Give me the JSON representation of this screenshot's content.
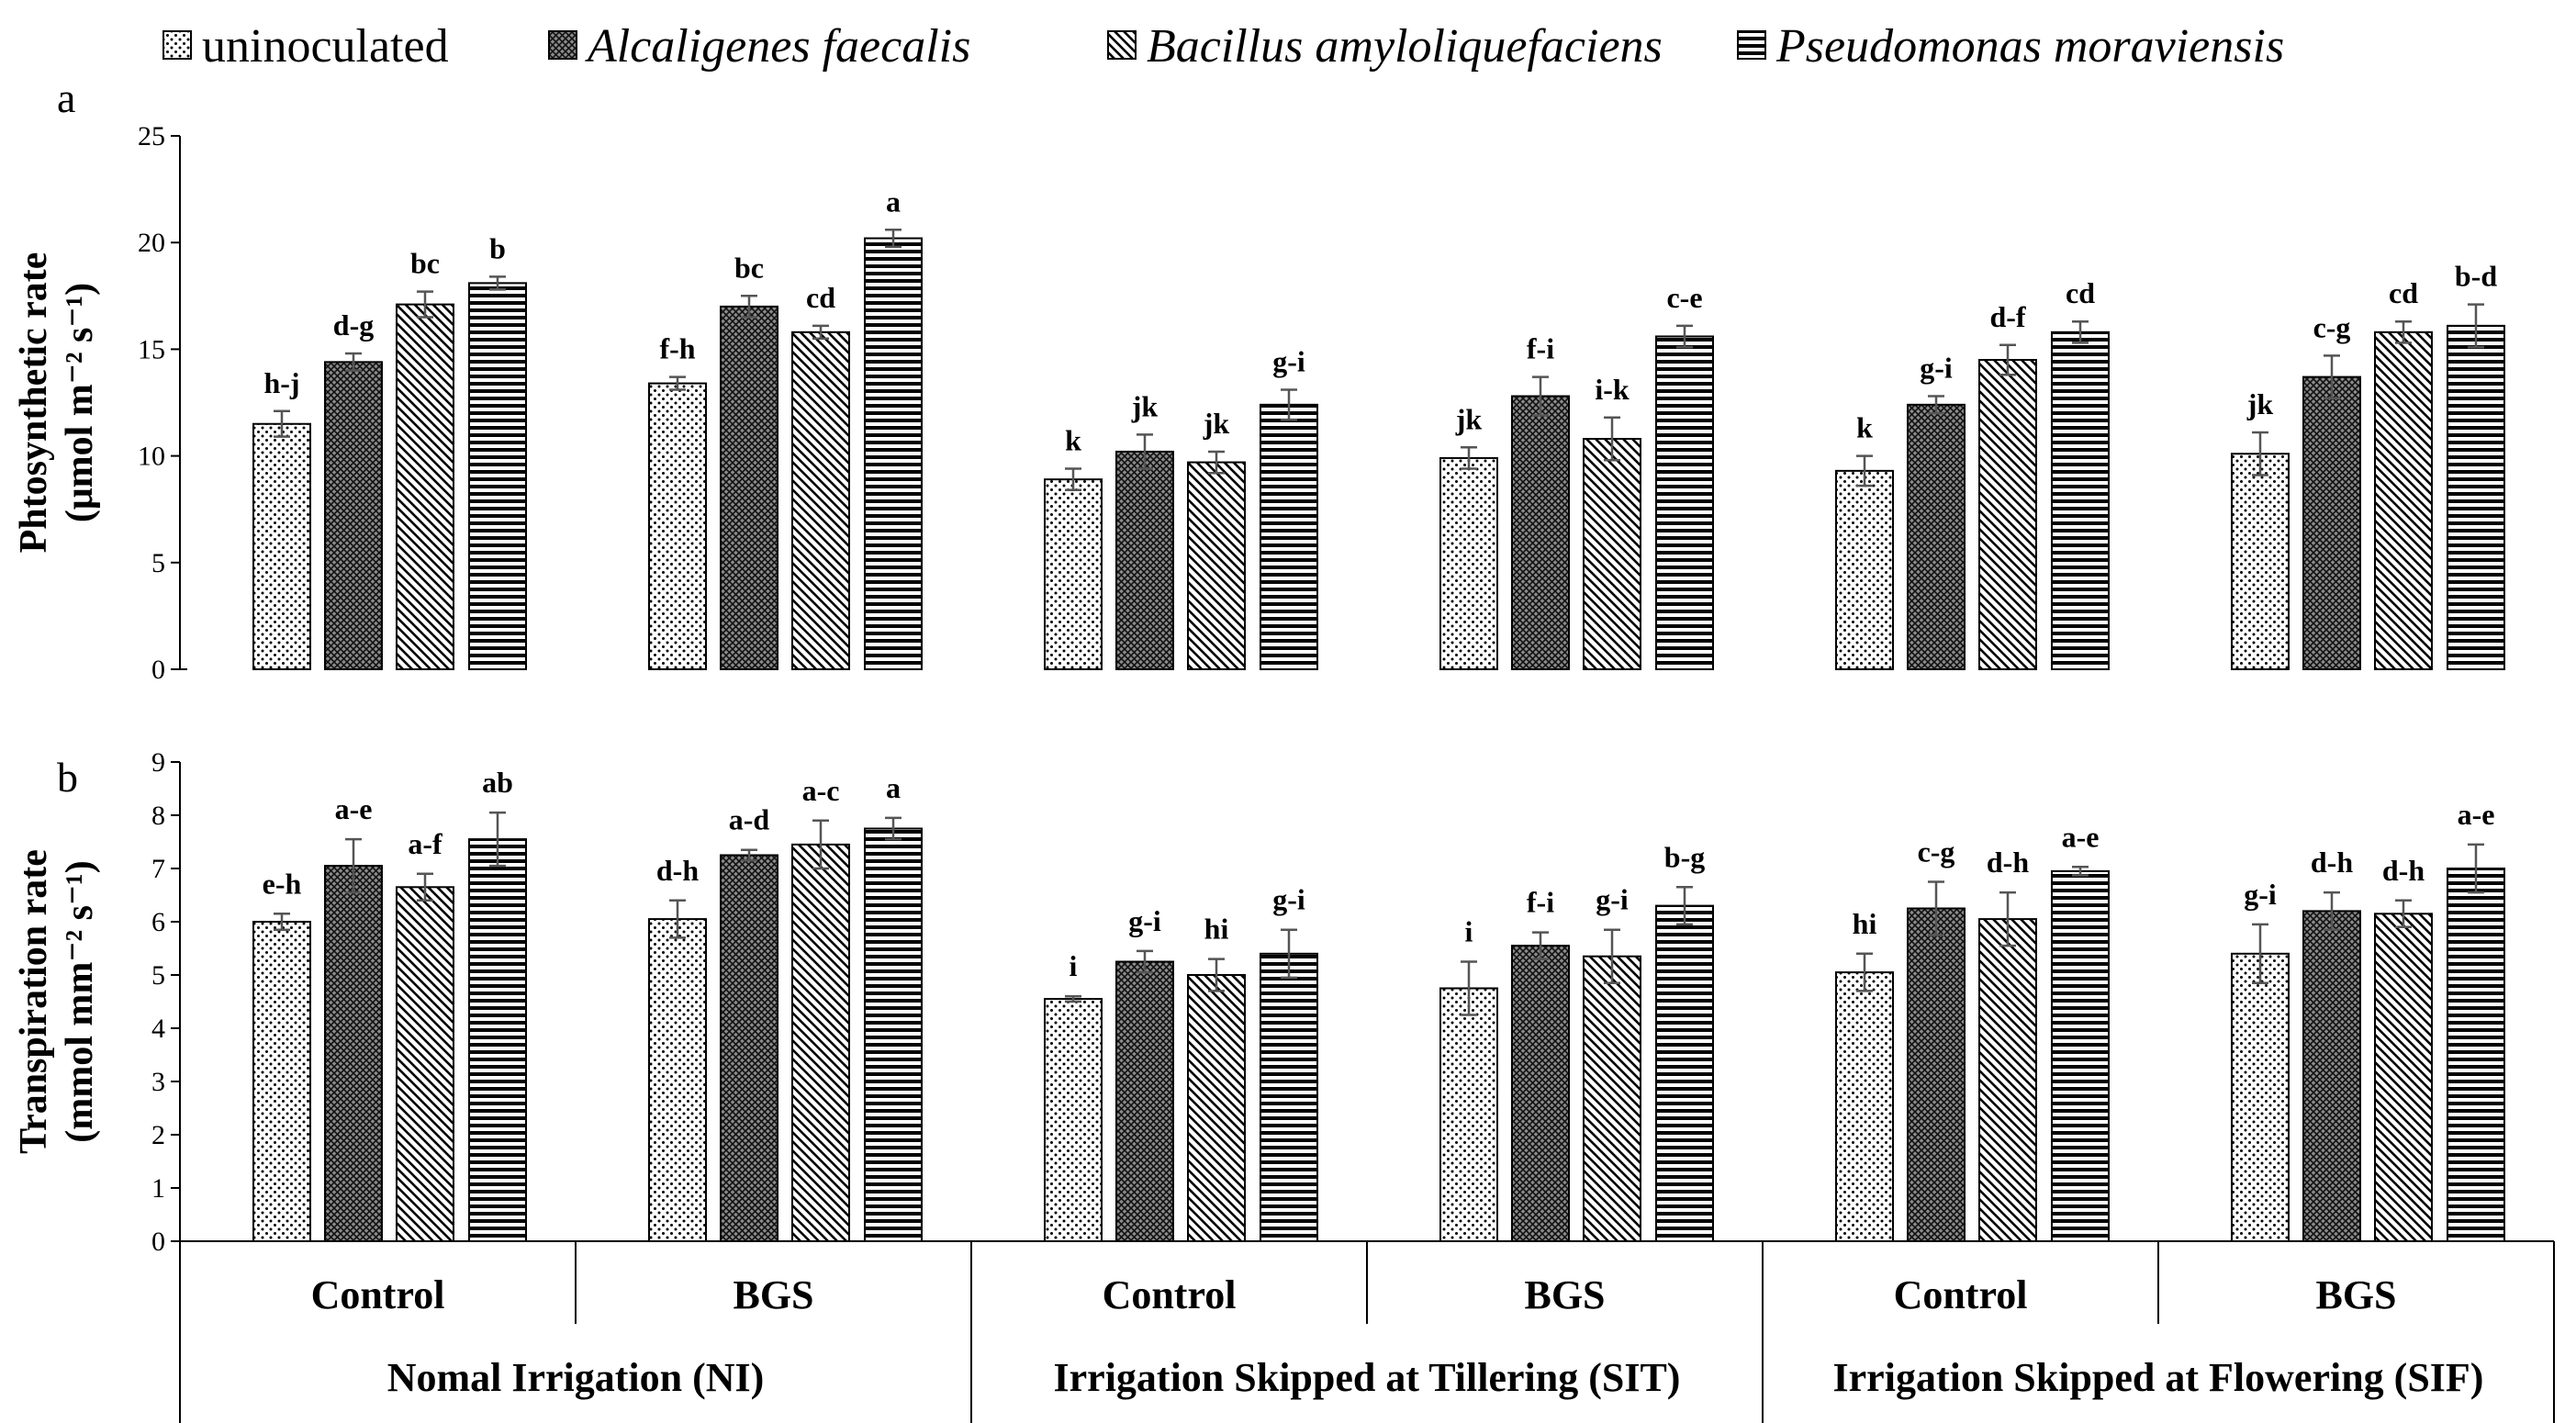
{
  "legend": [
    {
      "label": "uninoculated",
      "pattern": "dots",
      "italic": false
    },
    {
      "label": "Alcaligenes faecalis",
      "pattern": "cross",
      "italic": true
    },
    {
      "label": "Bacillus amyloliquefaciens",
      "pattern": "diag",
      "italic": true
    },
    {
      "label": "Pseudomonas moraviensis",
      "pattern": "hlines",
      "italic": true
    }
  ],
  "groups": [
    {
      "label": "Nomal Irrigation (NI)",
      "subgroups": [
        "Control",
        "BGS"
      ]
    },
    {
      "label": "Irrigation Skipped at Tillering (SIT)",
      "subgroups": [
        "Control",
        "BGS"
      ]
    },
    {
      "label": "Irrigation Skipped at Flowering (SIF)",
      "subgroups": [
        "Control",
        "BGS"
      ]
    }
  ],
  "chart_data": [
    {
      "type": "bar",
      "panel": "a",
      "ylabel_line1": "Phtosynthetic rate",
      "ylabel_line2": "(μmol m⁻² s⁻¹)",
      "ylim": [
        0,
        25
      ],
      "yticks": [
        0,
        5,
        10,
        15,
        20,
        25
      ],
      "series": [
        {
          "name": "uninoculated",
          "values": [
            11.5,
            13.4,
            8.9,
            9.9,
            9.3,
            10.1
          ],
          "errors": [
            0.6,
            0.3,
            0.5,
            0.5,
            0.7,
            1.0
          ],
          "labels": [
            "h-j",
            "f-h",
            "k",
            "jk",
            "k",
            "jk"
          ]
        },
        {
          "name": "Alcaligenes faecalis",
          "values": [
            14.4,
            17.0,
            10.2,
            12.8,
            12.4,
            13.7
          ],
          "errors": [
            0.4,
            0.5,
            0.8,
            0.9,
            0.4,
            1.0
          ],
          "labels": [
            "d-g",
            "bc",
            "jk",
            "f-i",
            "g-i",
            "c-g"
          ]
        },
        {
          "name": "Bacillus amyloliquefaciens",
          "values": [
            17.1,
            15.8,
            9.7,
            10.8,
            14.5,
            15.8
          ],
          "errors": [
            0.6,
            0.3,
            0.5,
            1.0,
            0.7,
            0.5
          ],
          "labels": [
            "bc",
            "cd",
            "jk",
            "i-k",
            "d-f",
            "cd"
          ]
        },
        {
          "name": "Pseudomonas moraviensis",
          "values": [
            18.1,
            20.2,
            12.4,
            15.6,
            15.8,
            16.1
          ],
          "errors": [
            0.3,
            0.4,
            0.7,
            0.5,
            0.5,
            1.0
          ],
          "labels": [
            "b",
            "a",
            "g-i",
            "c-e",
            "cd",
            "b-d"
          ]
        }
      ]
    },
    {
      "type": "bar",
      "panel": "b",
      "ylabel_line1": "Transpiration rate",
      "ylabel_line2": "(mmol mm⁻² s⁻¹)",
      "ylim": [
        0,
        9
      ],
      "yticks": [
        0,
        1,
        2,
        3,
        4,
        5,
        6,
        7,
        8,
        9
      ],
      "series": [
        {
          "name": "uninoculated",
          "values": [
            6.0,
            6.05,
            4.55,
            4.75,
            5.05,
            5.4
          ],
          "errors": [
            0.15,
            0.35,
            0.05,
            0.5,
            0.35,
            0.55
          ],
          "labels": [
            "e-h",
            "d-h",
            "i",
            "i",
            "hi",
            "g-i"
          ]
        },
        {
          "name": "Alcaligenes faecalis",
          "values": [
            7.05,
            7.25,
            5.25,
            5.55,
            6.25,
            6.2
          ],
          "errors": [
            0.5,
            0.1,
            0.2,
            0.25,
            0.5,
            0.35
          ],
          "labels": [
            "a-e",
            "a-d",
            "g-i",
            "f-i",
            "c-g",
            "d-h"
          ]
        },
        {
          "name": "Bacillus amyloliquefaciens",
          "values": [
            6.65,
            7.45,
            5.0,
            5.35,
            6.05,
            6.15
          ],
          "errors": [
            0.25,
            0.45,
            0.3,
            0.5,
            0.5,
            0.25
          ],
          "labels": [
            "a-f",
            "a-c",
            "hi",
            "g-i",
            "d-h",
            "d-h"
          ]
        },
        {
          "name": "Pseudomonas moraviensis",
          "values": [
            7.55,
            7.75,
            5.4,
            6.3,
            6.95,
            7.0
          ],
          "errors": [
            0.5,
            0.2,
            0.45,
            0.35,
            0.08,
            0.45
          ],
          "labels": [
            "ab",
            "a",
            "g-i",
            "b-g",
            "a-e",
            "a-e"
          ]
        }
      ]
    }
  ]
}
